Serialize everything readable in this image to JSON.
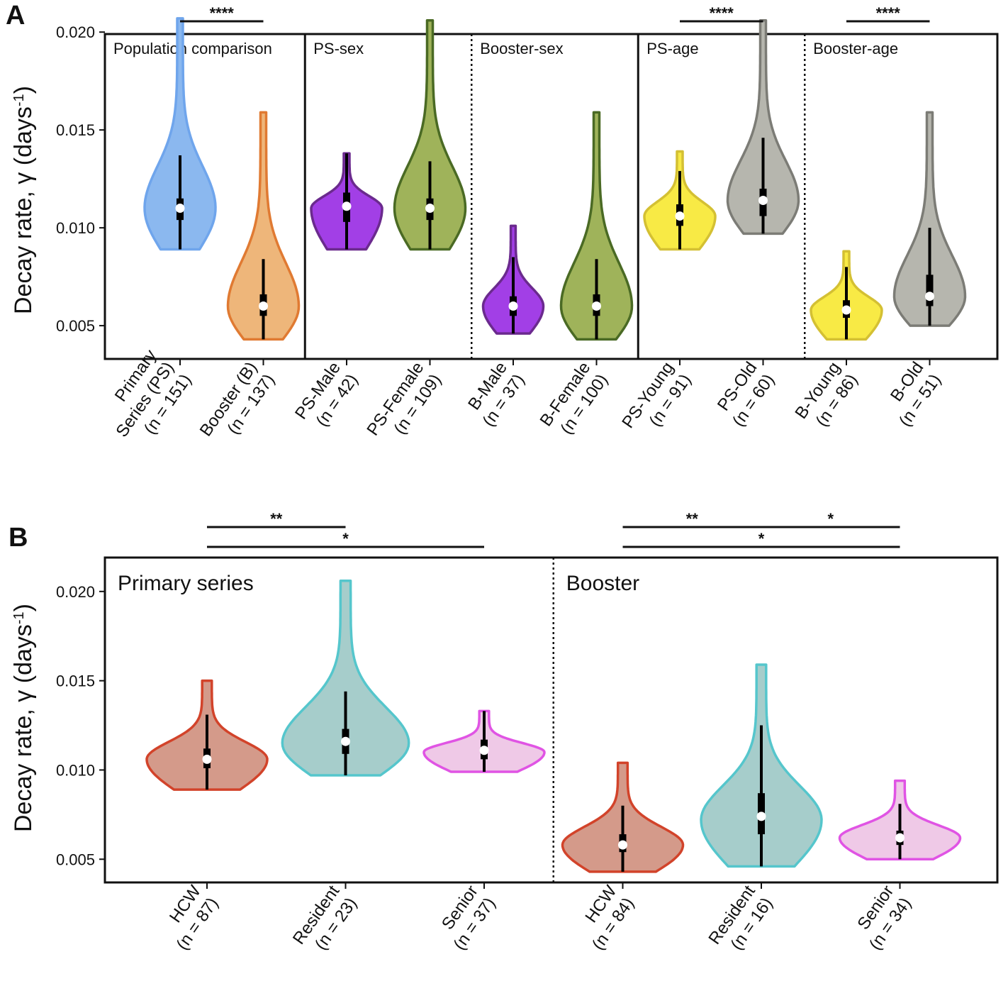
{
  "panel_a": {
    "letter": "A",
    "ylabel": "Decay rate, γ (days",
    "ylabel_sup": "-1",
    "ylabel_close": ")"
  },
  "panel_b": {
    "letter": "B",
    "ylabel": "Decay rate, γ (days",
    "ylabel_sup": "-1",
    "ylabel_close": ")"
  },
  "chart_data": [
    {
      "type": "violin",
      "id": "A",
      "ylabel": "Decay rate, γ (days-1)",
      "ylim": [
        0.0033,
        0.0199
      ],
      "yticks": [
        0.005,
        0.01,
        0.015,
        0.02
      ],
      "ytick_labels": [
        "0.005",
        "0.010",
        "0.015",
        "0.020"
      ],
      "groups": [
        {
          "label": "Population comparison",
          "start": 0,
          "end": 1,
          "separator_after": "solid"
        },
        {
          "label": "PS-sex",
          "start": 2,
          "end": 3,
          "separator_after": "dotted"
        },
        {
          "label": "Booster-sex",
          "start": 4,
          "end": 5,
          "separator_after": "solid"
        },
        {
          "label": "PS-age",
          "start": 6,
          "end": 7,
          "separator_after": "dotted"
        },
        {
          "label": "Booster-age",
          "start": 8,
          "end": 9,
          "separator_after": null
        }
      ],
      "series": [
        {
          "name": "Primary Series (PS)",
          "n_label": "(n = 151)",
          "lines": [
            "Primary",
            "Series (PS)",
            "(n = 151)"
          ],
          "fill": "#8bb8ef",
          "stroke": "#6fa5ec",
          "min": 0.0089,
          "max": 0.0207,
          "median": 0.011,
          "q1": 0.0104,
          "q3": 0.0115,
          "w_lo": 0.0089,
          "w_hi": 0.0137,
          "mode": 0.011,
          "width": 0.4
        },
        {
          "name": "Booster (B)",
          "n_label": "(n = 137)",
          "lines": [
            "Booster (B)",
            "(n = 137)"
          ],
          "fill": "#eeb67a",
          "stroke": "#e07a32",
          "min": 0.0043,
          "max": 0.0159,
          "median": 0.006,
          "q1": 0.0055,
          "q3": 0.0066,
          "w_lo": 0.0043,
          "w_hi": 0.0084,
          "mode": 0.006,
          "width": 0.4
        },
        {
          "name": "PS-Male",
          "n_label": "(n = 42)",
          "lines": [
            "PS-Male",
            "(n = 42)"
          ],
          "fill": "#a23fe6",
          "stroke": "#6b2a8e",
          "min": 0.0089,
          "max": 0.0138,
          "median": 0.0111,
          "q1": 0.0103,
          "q3": 0.0118,
          "w_lo": 0.0089,
          "w_hi": 0.0138,
          "mode": 0.011,
          "width": 0.4
        },
        {
          "name": "PS-Female",
          "n_label": "(n = 109)",
          "lines": [
            "PS-Female",
            "(n = 109)"
          ],
          "fill": "#9fb35a",
          "stroke": "#4a6a24",
          "min": 0.0089,
          "max": 0.0206,
          "median": 0.011,
          "q1": 0.0104,
          "q3": 0.0115,
          "w_lo": 0.0089,
          "w_hi": 0.0134,
          "mode": 0.011,
          "width": 0.4
        },
        {
          "name": "B-Male",
          "n_label": "(n = 37)",
          "lines": [
            "B-Male",
            "(n = 37)"
          ],
          "fill": "#a23fe6",
          "stroke": "#6b2a8e",
          "min": 0.0046,
          "max": 0.0101,
          "median": 0.006,
          "q1": 0.0055,
          "q3": 0.0065,
          "w_lo": 0.0046,
          "w_hi": 0.0085,
          "mode": 0.006,
          "width": 0.34
        },
        {
          "name": "B-Female",
          "n_label": "(n = 100)",
          "lines": [
            "B-Female",
            "(n = 100)"
          ],
          "fill": "#9fb35a",
          "stroke": "#4a6a24",
          "min": 0.0043,
          "max": 0.0159,
          "median": 0.006,
          "q1": 0.0055,
          "q3": 0.0066,
          "w_lo": 0.0043,
          "w_hi": 0.0084,
          "mode": 0.006,
          "width": 0.4
        },
        {
          "name": "PS-Young",
          "n_label": "(n = 91)",
          "lines": [
            "PS-Young",
            "(n = 91)"
          ],
          "fill": "#f8ea45",
          "stroke": "#d4c033",
          "min": 0.0089,
          "max": 0.0139,
          "median": 0.0106,
          "q1": 0.0101,
          "q3": 0.0112,
          "w_lo": 0.0089,
          "w_hi": 0.0129,
          "mode": 0.0106,
          "width": 0.4
        },
        {
          "name": "PS-Old",
          "n_label": "(n = 60)",
          "lines": [
            "PS-Old",
            "(n = 60)"
          ],
          "fill": "#b6b6ae",
          "stroke": "#7c7c76",
          "min": 0.0097,
          "max": 0.0206,
          "median": 0.0114,
          "q1": 0.0106,
          "q3": 0.012,
          "w_lo": 0.0097,
          "w_hi": 0.0146,
          "mode": 0.0114,
          "width": 0.4
        },
        {
          "name": "B-Young",
          "n_label": "(n = 86)",
          "lines": [
            "B-Young",
            "(n = 86)"
          ],
          "fill": "#f8ea45",
          "stroke": "#d4c033",
          "min": 0.0043,
          "max": 0.0088,
          "median": 0.0058,
          "q1": 0.0054,
          "q3": 0.0063,
          "w_lo": 0.0043,
          "w_hi": 0.008,
          "mode": 0.0058,
          "width": 0.4
        },
        {
          "name": "B-Old",
          "n_label": "(n = 51)",
          "lines": [
            "B-Old",
            "(n = 51)"
          ],
          "fill": "#b6b6ae",
          "stroke": "#7c7c76",
          "min": 0.005,
          "max": 0.0159,
          "median": 0.0065,
          "q1": 0.006,
          "q3": 0.0076,
          "w_lo": 0.005,
          "w_hi": 0.01,
          "mode": 0.0065,
          "width": 0.4
        }
      ],
      "significance": [
        {
          "label": "****",
          "from": 0,
          "to": 1,
          "level": 0
        },
        {
          "label": "****",
          "from": 6,
          "to": 7,
          "level": 0
        },
        {
          "label": "****",
          "from": 8,
          "to": 9,
          "level": 0
        }
      ]
    },
    {
      "type": "violin",
      "id": "B",
      "ylabel": "Decay rate, γ (days-1)",
      "ylim": [
        0.0037,
        0.0219
      ],
      "yticks": [
        0.005,
        0.01,
        0.015,
        0.02
      ],
      "ytick_labels": [
        "0.005",
        "0.010",
        "0.015",
        "0.020"
      ],
      "groups": [
        {
          "label": "Primary series",
          "start": 0,
          "end": 2,
          "separator_after": "dotted"
        },
        {
          "label": "Booster",
          "start": 3,
          "end": 5,
          "separator_after": null
        }
      ],
      "series": [
        {
          "name": "HCW",
          "n_label": "(n = 87)",
          "lines": [
            "HCW",
            "(n = 87)"
          ],
          "fill": "#d49a8a",
          "stroke": "#d2432a",
          "min": 0.0089,
          "max": 0.015,
          "median": 0.0106,
          "q1": 0.0101,
          "q3": 0.0112,
          "w_lo": 0.0089,
          "w_hi": 0.0131,
          "mode": 0.0106,
          "width": 0.4
        },
        {
          "name": "Resident",
          "n_label": "(n = 23)",
          "lines": [
            "Resident",
            "(n = 23)"
          ],
          "fill": "#a6cdcb",
          "stroke": "#55c6cc",
          "min": 0.0097,
          "max": 0.0206,
          "median": 0.0116,
          "q1": 0.0109,
          "q3": 0.0123,
          "w_lo": 0.0097,
          "w_hi": 0.0144,
          "mode": 0.0115,
          "width": 0.42
        },
        {
          "name": "Senior",
          "n_label": "(n = 37)",
          "lines": [
            "Senior",
            "(n = 37)"
          ],
          "fill": "#efc9e7",
          "stroke": "#e054e4",
          "min": 0.0099,
          "max": 0.0133,
          "median": 0.0111,
          "q1": 0.0106,
          "q3": 0.0117,
          "w_lo": 0.0099,
          "w_hi": 0.0133,
          "mode": 0.011,
          "width": 0.4
        },
        {
          "name": "HCW",
          "n_label": "(n = 84)",
          "lines": [
            "HCW",
            "(n = 84)"
          ],
          "fill": "#d49a8a",
          "stroke": "#d2432a",
          "min": 0.0043,
          "max": 0.0104,
          "median": 0.0058,
          "q1": 0.0054,
          "q3": 0.0064,
          "w_lo": 0.0043,
          "w_hi": 0.008,
          "mode": 0.0058,
          "width": 0.4
        },
        {
          "name": "Resident",
          "n_label": "(n = 16)",
          "lines": [
            "Resident",
            "(n = 16)"
          ],
          "fill": "#a6cdcb",
          "stroke": "#55c6cc",
          "min": 0.0046,
          "max": 0.0159,
          "median": 0.0074,
          "q1": 0.0064,
          "q3": 0.0087,
          "w_lo": 0.0046,
          "w_hi": 0.0125,
          "mode": 0.0072,
          "width": 0.4
        },
        {
          "name": "Senior",
          "n_label": "(n = 34)",
          "lines": [
            "Senior",
            "(n = 34)"
          ],
          "fill": "#efc9e7",
          "stroke": "#e054e4",
          "min": 0.005,
          "max": 0.0094,
          "median": 0.0062,
          "q1": 0.0058,
          "q3": 0.0066,
          "w_lo": 0.005,
          "w_hi": 0.0081,
          "mode": 0.0062,
          "width": 0.4
        }
      ],
      "significance": [
        {
          "label": "**",
          "from": 0,
          "to": 1,
          "level": 0
        },
        {
          "label": "*",
          "from": 0,
          "to": 2,
          "level": 1
        },
        {
          "label": "**",
          "from": 3,
          "to": 4,
          "level": 0
        },
        {
          "label": "*",
          "from": 4,
          "to": 5,
          "level": 0
        },
        {
          "label": "*",
          "from": 3,
          "to": 5,
          "level": 1
        }
      ]
    }
  ]
}
